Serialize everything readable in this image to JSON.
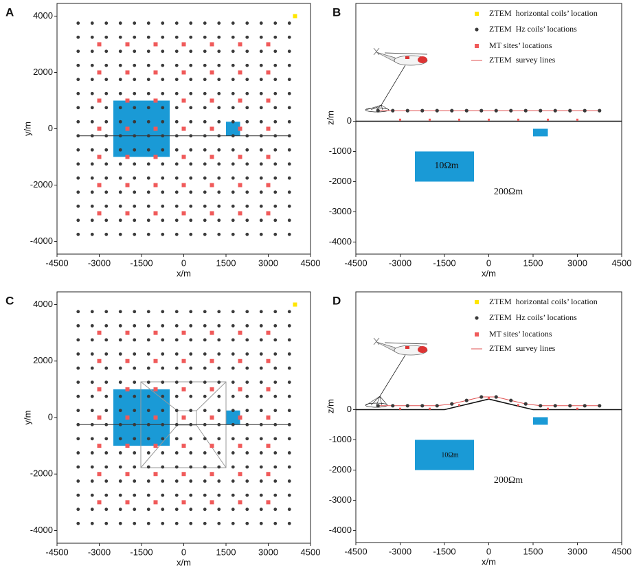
{
  "chart_data": [
    {
      "type": "plan",
      "label": "A",
      "xlabel": "x/m",
      "ylabel": "y/m",
      "xlim": [
        -4500,
        4500
      ],
      "ylim": [
        -4450,
        4450
      ],
      "xticks": [
        -4500,
        -3000,
        -1500,
        0,
        1500,
        3000,
        4500
      ],
      "yticks": [
        -4000,
        -2000,
        0,
        2000,
        4000
      ],
      "hz_coils": {
        "color": "#3a3a3a",
        "x": [
          -3750,
          -3250,
          -2750,
          -2250,
          -1750,
          -1250,
          -750,
          -250,
          250,
          750,
          1250,
          1750,
          2250,
          2750,
          3250,
          3750
        ],
        "y": [
          -3750,
          -3250,
          -2750,
          -2250,
          -1750,
          -1250,
          -750,
          -250,
          250,
          750,
          1250,
          1750,
          2250,
          2750,
          3250,
          3750
        ]
      },
      "mt_sites": {
        "color": "#f05a5a",
        "x": [
          -3000,
          -2000,
          -1000,
          0,
          1000,
          2000,
          3000
        ],
        "y": [
          -3000,
          -2000,
          -1000,
          0,
          1000,
          2000,
          3000
        ]
      },
      "horizontal_coil": {
        "color": "#ffe600",
        "x": 3950,
        "y": 4000
      },
      "survey_line": {
        "color": "#333333",
        "x": [
          -3750,
          3750
        ],
        "y": [
          -250,
          -250
        ]
      },
      "body_color": "#1a9ad6",
      "bodies": [
        {
          "x": [
            -2500,
            -500
          ],
          "y": [
            -1000,
            1000
          ]
        },
        {
          "x": [
            1500,
            2000
          ],
          "y": [
            -250,
            250
          ]
        }
      ]
    },
    {
      "type": "section",
      "label": "B",
      "xlabel": "x/m",
      "ylabel": "z/m",
      "xlim": [
        -4500,
        4500
      ],
      "ylim": [
        -4400,
        3900
      ],
      "xticks": [
        -4500,
        -3000,
        -1500,
        0,
        1500,
        3000,
        4500
      ],
      "yticks": [
        0,
        -1000,
        -2000,
        -3000,
        -4000
      ],
      "terrain": {
        "x": [
          -4500,
          4500
        ],
        "z": [
          0,
          0
        ]
      },
      "hz_coils": {
        "color": "#3a3a3a",
        "x": [
          -3750,
          -3250,
          -2750,
          -2250,
          -1750,
          -1250,
          -750,
          -250,
          250,
          750,
          1250,
          1750,
          2250,
          2750,
          3250,
          3750
        ],
        "z": [
          350,
          350,
          350,
          350,
          350,
          350,
          350,
          350,
          350,
          350,
          350,
          350,
          350,
          350,
          350,
          350
        ]
      },
      "mt_sites": {
        "color": "#f05a5a",
        "x": [
          -3000,
          -2000,
          -1000,
          0,
          1000,
          2000,
          3000
        ],
        "z": [
          50,
          50,
          50,
          50,
          50,
          50,
          50
        ]
      },
      "survey_color": "#e05050",
      "body_color": "#1a9ad6",
      "bodies": [
        {
          "x": [
            -2500,
            -500
          ],
          "z": [
            -2000,
            -1000
          ]
        },
        {
          "x": [
            1500,
            2000
          ],
          "z": [
            -500,
            -250
          ]
        }
      ],
      "annotations": [
        "10Ωm",
        "200Ωm"
      ],
      "legend": [
        {
          "name": "ZTEM  horizontal coils’ location",
          "color": "#ffe600",
          "marker": "square"
        },
        {
          "name": "ZTEM  Hz coils’ locations",
          "color": "#3a3a3a",
          "marker": "circle"
        },
        {
          "name": "MT sites’ locations",
          "color": "#f05a5a",
          "marker": "square"
        },
        {
          "name": "ZTEM  survey lines",
          "color": "#e05050",
          "marker": "line"
        }
      ]
    },
    {
      "type": "plan",
      "label": "C",
      "xlabel": "x/m",
      "ylabel": "y/m",
      "xlim": [
        -4500,
        4500
      ],
      "ylim": [
        -4450,
        4450
      ],
      "xticks": [
        -4500,
        -3000,
        -1500,
        0,
        1500,
        3000,
        4500
      ],
      "yticks": [
        -4000,
        -2000,
        0,
        2000,
        4000
      ],
      "hz_coils": {
        "color": "#3a3a3a",
        "x": [
          -3750,
          -3250,
          -2750,
          -2250,
          -1750,
          -1250,
          -750,
          -250,
          250,
          750,
          1250,
          1750,
          2250,
          2750,
          3250,
          3750
        ],
        "y": [
          -3750,
          -3250,
          -2750,
          -2250,
          -1750,
          -1250,
          -750,
          -250,
          250,
          750,
          1250,
          1750,
          2250,
          2750,
          3250,
          3750
        ]
      },
      "mt_sites": {
        "color": "#f05a5a",
        "x": [
          -3000,
          -2000,
          -1000,
          0,
          1000,
          2000,
          3000
        ],
        "y": [
          -3000,
          -2000,
          -1000,
          0,
          1000,
          2000,
          3000
        ]
      },
      "horizontal_coil": {
        "color": "#ffe600",
        "x": 3950,
        "y": 4000
      },
      "survey_line": {
        "color": "#333333",
        "x": [
          -3750,
          3750
        ],
        "y": [
          -250,
          -250
        ]
      },
      "body_color": "#1a9ad6",
      "bodies": [
        {
          "x": [
            -2500,
            -500
          ],
          "y": [
            -1000,
            1000
          ]
        },
        {
          "x": [
            1500,
            2000
          ],
          "y": [
            -250,
            250
          ]
        }
      ]
    },
    {
      "type": "section",
      "label": "D",
      "xlabel": "x/m",
      "ylabel": "z/m",
      "xlim": [
        -4500,
        4500
      ],
      "ylim": [
        -4400,
        3900
      ],
      "xticks": [
        -4500,
        -3000,
        -1500,
        0,
        1500,
        3000,
        4500
      ],
      "yticks": [
        0,
        -1000,
        -2000,
        -3000,
        -4000
      ],
      "terrain": {
        "x": [
          -4500,
          -1500,
          0,
          1500,
          4500
        ],
        "z": [
          0,
          0,
          350,
          0,
          0
        ]
      },
      "hz_coils": {
        "color": "#3a3a3a",
        "x": [
          -3750,
          -3250,
          -2750,
          -2250,
          -1750,
          -1250,
          -750,
          -250,
          250,
          750,
          1250,
          1750,
          2250,
          2750,
          3250,
          3750
        ],
        "z": [
          130,
          130,
          130,
          130,
          130,
          190,
          305,
          420,
          420,
          305,
          190,
          130,
          130,
          130,
          130,
          130
        ]
      },
      "mt_sites": {
        "color": "#f05a5a",
        "x": [
          -3000,
          -2000,
          -1000,
          0,
          1000,
          2000,
          3000
        ],
        "z": [
          30,
          30,
          150,
          380,
          150,
          30,
          30
        ]
      },
      "survey_color": "#e05050",
      "body_color": "#1a9ad6",
      "bodies": [
        {
          "x": [
            -2500,
            -500
          ],
          "z": [
            -2000,
            -1000
          ]
        },
        {
          "x": [
            1500,
            2000
          ],
          "z": [
            -500,
            -250
          ]
        }
      ],
      "annotations": [
        "10Ωm",
        "200Ωm"
      ],
      "legend": [
        {
          "name": "ZTEM  horizontal coils’ location",
          "color": "#ffe600",
          "marker": "square"
        },
        {
          "name": "ZTEM  Hz coils’ locations",
          "color": "#3a3a3a",
          "marker": "circle"
        },
        {
          "name": "MT sites’ locations",
          "color": "#f05a5a",
          "marker": "square"
        },
        {
          "name": "ZTEM  survey lines",
          "color": "#e05050",
          "marker": "line"
        }
      ]
    }
  ]
}
